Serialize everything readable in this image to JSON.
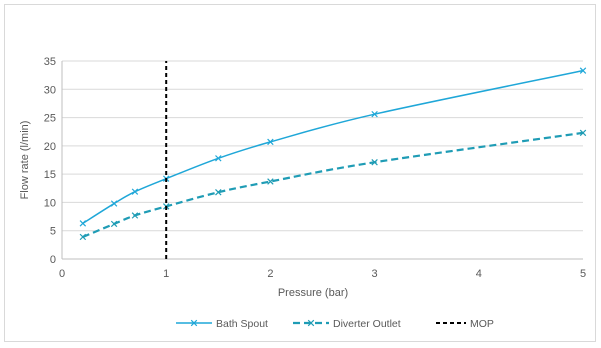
{
  "chart_data": {
    "type": "line",
    "title": "",
    "xlabel": "Pressure (bar)",
    "ylabel": "Flow rate (l/min)",
    "xlim": [
      0,
      5
    ],
    "ylim": [
      0,
      35
    ],
    "x_ticks": [
      0,
      1,
      2,
      3,
      4,
      5
    ],
    "y_ticks": [
      0,
      5,
      10,
      15,
      20,
      25,
      30,
      35
    ],
    "grid": "horizontal",
    "legend_position": "bottom",
    "series": [
      {
        "name": "Bath Spout",
        "color": "#1fa7d8",
        "style": "solid",
        "marker": "x",
        "x": [
          0.2,
          0.5,
          0.7,
          1.0,
          1.5,
          2.0,
          3.0,
          5.0
        ],
        "y": [
          6.3,
          9.8,
          11.9,
          14.2,
          17.8,
          20.7,
          25.6,
          33.3
        ]
      },
      {
        "name": "Diverter Outlet",
        "color": "#1f9cb5",
        "style": "dashed",
        "marker": "x",
        "x": [
          0.2,
          0.5,
          0.7,
          1.0,
          1.5,
          2.0,
          3.0,
          5.0
        ],
        "y": [
          3.9,
          6.2,
          7.7,
          9.3,
          11.8,
          13.7,
          17.1,
          22.3
        ]
      },
      {
        "name": "MOP",
        "color": "#000000",
        "style": "dashed",
        "marker": "none",
        "x": [
          1.0,
          1.0
        ],
        "y": [
          0,
          35
        ]
      }
    ]
  }
}
